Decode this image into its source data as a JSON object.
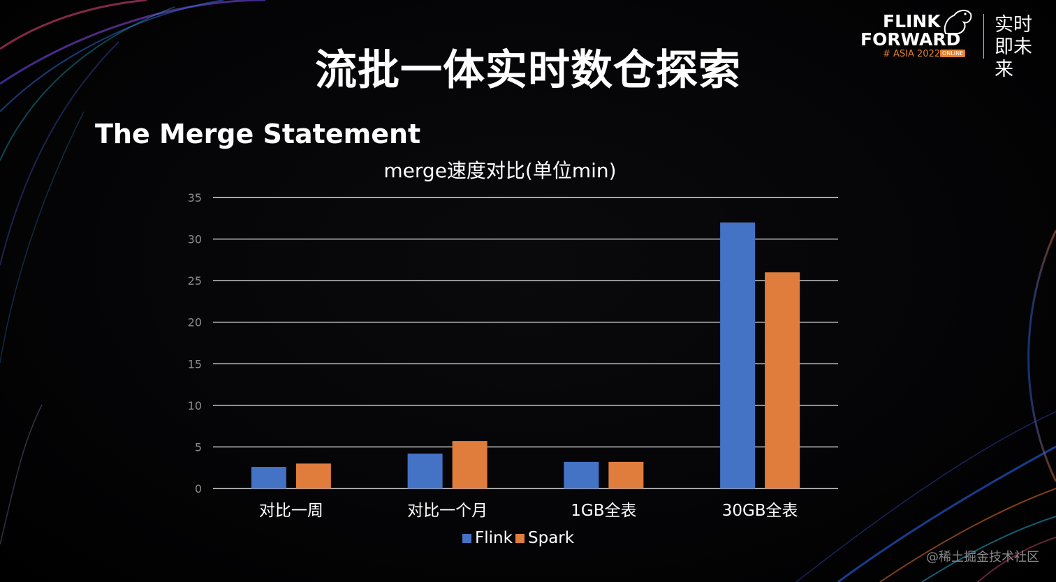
{
  "slide": {
    "title": "流批一体实时数仓探索",
    "subtitle": "The Merge Statement"
  },
  "logo": {
    "line1": "FLINK",
    "line2": "FORWARD",
    "event": "# ASIA 2022",
    "badge": "ONLINE",
    "slogan": "实时即未来"
  },
  "watermark": "@稀土掘金技术社区",
  "colors": {
    "flink": "#4472C4",
    "spark": "#E07D3C",
    "grid": "#d9d9d9",
    "tick_text": "#8c8c8c",
    "label_text": "#ffffff"
  },
  "chart_data": {
    "type": "bar",
    "title": "merge速度对比(单位min)",
    "categories": [
      "对比一周",
      "对比一个月",
      "1GB全表",
      "30GB全表"
    ],
    "series": [
      {
        "name": "Flink",
        "values": [
          2.6,
          4.2,
          3.2,
          32
        ]
      },
      {
        "name": "Spark",
        "values": [
          3.0,
          5.7,
          3.2,
          26
        ]
      }
    ],
    "ylim": [
      0,
      35
    ],
    "yticks": [
      0,
      5,
      10,
      15,
      20,
      25,
      30,
      35
    ],
    "grid": true,
    "legend": "bottom-center",
    "xlabel": "",
    "ylabel": ""
  }
}
